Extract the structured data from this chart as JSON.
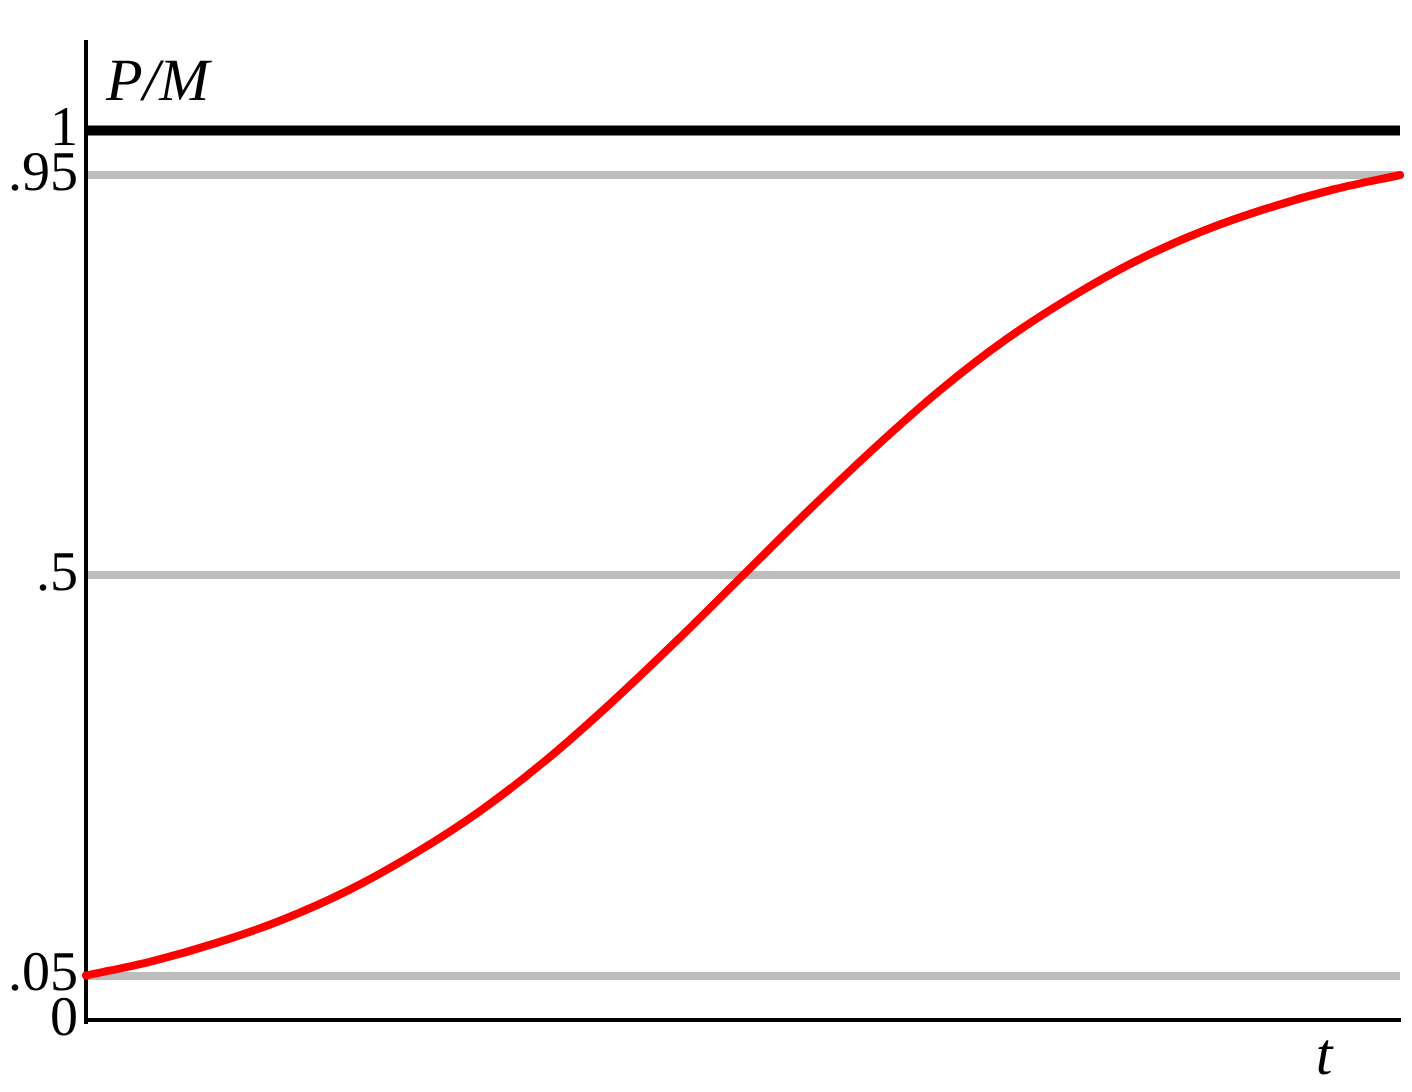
{
  "chart_data": {
    "type": "line",
    "xlabel": "t",
    "ylabel": "P/M",
    "categories": [
      null,
      null,
      null,
      null,
      null,
      null,
      null,
      null,
      null,
      null,
      null,
      null,
      null,
      null,
      null,
      null,
      null,
      null,
      null,
      null,
      null
    ],
    "series": [
      {
        "color": "#ff0000",
        "values": [
          0.05,
          0.066,
          0.087,
          0.113,
          0.146,
          0.187,
          0.235,
          0.292,
          0.357,
          0.427,
          0.5,
          0.573,
          0.643,
          0.708,
          0.765,
          0.813,
          0.854,
          0.887,
          0.913,
          0.934,
          0.95
        ]
      }
    ],
    "ylim": [
      0,
      1.1
    ],
    "yticks": [
      0,
      {
        "value": 0.05,
        "label": ".05"
      },
      {
        "value": 0.5,
        "label": ".5"
      },
      {
        "value": 0.95,
        "label": ".95"
      },
      1
    ],
    "ref_lines": [
      {
        "axis": "y",
        "value": 1,
        "color": "#000000"
      }
    ],
    "grid": "y",
    "tick_labels": "y",
    "marker": "none",
    "line_style": "solid",
    "legend": false
  }
}
